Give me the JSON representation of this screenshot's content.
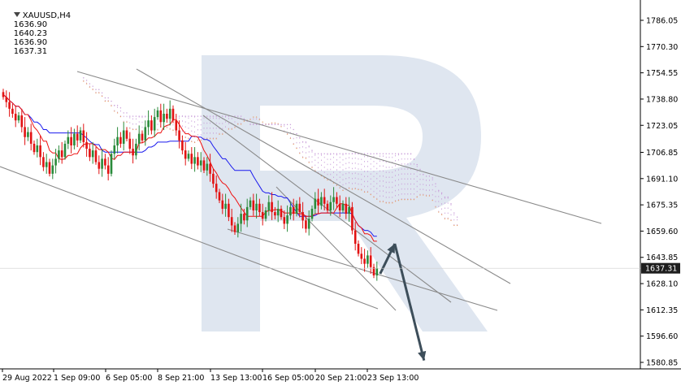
{
  "header": {
    "symbol": "XAUUSD,H4",
    "open": "1636.90",
    "high": "1640.23",
    "low": "1636.90",
    "close": "1637.31"
  },
  "colors": {
    "bull_candle": "#2a8a3a",
    "bear_candle": "#e21212",
    "tenkan": "#ee1111",
    "kijun": "#1a1aee",
    "kumo_a": "#e7a06a",
    "kumo_b": "#c79ad8",
    "trendline": "#8a8a8a",
    "forecast_arrow": "#3d4e5a",
    "watermark": "#dfe6f0",
    "current_price_bg": "#1e1e1e"
  },
  "chart_data": {
    "type": "candlestick",
    "instrument": "XAUUSD",
    "timeframe": "H4",
    "ylim": [
      1574.0,
      1800.0
    ],
    "y_ticks": [
      "1786.05",
      "1770.30",
      "1754.55",
      "1738.80",
      "1723.05",
      "1706.85",
      "1691.10",
      "1675.35",
      "1659.60",
      "1643.85",
      "1628.10",
      "1612.35",
      "1596.60",
      "1580.85"
    ],
    "x_ticks": [
      "29 Aug 2022",
      "1 Sep 09:00",
      "6 Sep 05:00",
      "8 Sep 21:00",
      "13 Sep 13:00",
      "16 Sep 05:00",
      "20 Sep 21:00",
      "23 Sep 13:00"
    ],
    "current_price": "1637.31",
    "bar_count": 122,
    "candle_closes": [
      1740,
      1737,
      1733,
      1730,
      1726,
      1729,
      1722,
      1716,
      1719,
      1712,
      1707,
      1711,
      1704,
      1698,
      1701,
      1694,
      1699,
      1703,
      1708,
      1704,
      1712,
      1716,
      1711,
      1718,
      1714,
      1720,
      1713,
      1709,
      1704,
      1708,
      1701,
      1697,
      1703,
      1699,
      1694,
      1706,
      1711,
      1716,
      1712,
      1720,
      1715,
      1709,
      1705,
      1712,
      1718,
      1714,
      1722,
      1726,
      1720,
      1728,
      1732,
      1725,
      1730,
      1727,
      1733,
      1726,
      1720,
      1714,
      1708,
      1703,
      1706,
      1700,
      1704,
      1699,
      1702,
      1696,
      1700,
      1694,
      1688,
      1683,
      1678,
      1673,
      1676,
      1668,
      1663,
      1659,
      1664,
      1670,
      1666,
      1674,
      1678,
      1672,
      1676,
      1671,
      1667,
      1672,
      1677,
      1671,
      1669,
      1673,
      1668,
      1664,
      1669,
      1674,
      1670,
      1676,
      1671,
      1666,
      1661,
      1667,
      1673,
      1679,
      1675,
      1680,
      1676,
      1672,
      1677,
      1680,
      1676,
      1672,
      1676,
      1670,
      1674,
      1660,
      1652,
      1646,
      1643,
      1640,
      1645,
      1638,
      1633,
      1637.31
    ],
    "forecast_up": {
      "from": 1634,
      "to": 1652
    },
    "forecast_down": {
      "from": 1652,
      "to": 1582
    }
  }
}
